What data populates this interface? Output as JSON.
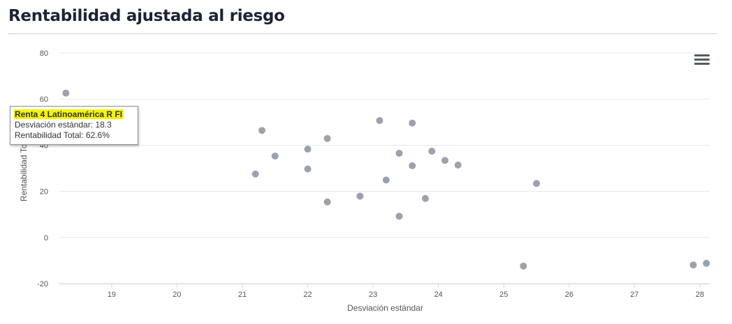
{
  "page": {
    "title": "Rentabilidad ajustada al riesgo"
  },
  "menu": {
    "icon": "hamburger-menu-icon"
  },
  "tooltip": {
    "name": "Renta 4 Latinoamérica R FI",
    "x_line": "Desviación estándar: 18.3",
    "y_line": "Rentabilidad Total: 62.6%"
  },
  "chart_data": {
    "type": "scatter",
    "title": "",
    "xlabel": "Desviación estándar",
    "ylabel": "Rentabilidad Total",
    "xlim": [
      18.2,
      28.15
    ],
    "ylim": [
      -20,
      80
    ],
    "xticks": [
      19,
      20,
      21,
      22,
      23,
      24,
      25,
      26,
      27,
      28
    ],
    "yticks": [
      80,
      60,
      40,
      20,
      0,
      -20
    ],
    "grid": true,
    "marker_color": "#9aa3ad",
    "points": [
      {
        "x": 18.3,
        "y": 62.6
      },
      {
        "x": 21.2,
        "y": 27.5
      },
      {
        "x": 21.3,
        "y": 46.4
      },
      {
        "x": 21.5,
        "y": 35.3
      },
      {
        "x": 22.0,
        "y": 38.3
      },
      {
        "x": 22.0,
        "y": 29.7
      },
      {
        "x": 22.3,
        "y": 42.9
      },
      {
        "x": 22.3,
        "y": 15.4
      },
      {
        "x": 22.8,
        "y": 17.9
      },
      {
        "x": 23.1,
        "y": 50.7
      },
      {
        "x": 23.2,
        "y": 24.9
      },
      {
        "x": 23.4,
        "y": 36.5
      },
      {
        "x": 23.4,
        "y": 9.2
      },
      {
        "x": 23.6,
        "y": 49.6
      },
      {
        "x": 23.6,
        "y": 31.1
      },
      {
        "x": 23.8,
        "y": 16.9
      },
      {
        "x": 23.9,
        "y": 37.4
      },
      {
        "x": 24.1,
        "y": 33.4
      },
      {
        "x": 24.3,
        "y": 31.4
      },
      {
        "x": 25.3,
        "y": -12.4
      },
      {
        "x": 25.5,
        "y": 23.4
      },
      {
        "x": 27.9,
        "y": -11.9
      },
      {
        "x": 28.1,
        "y": -11.2
      }
    ]
  }
}
